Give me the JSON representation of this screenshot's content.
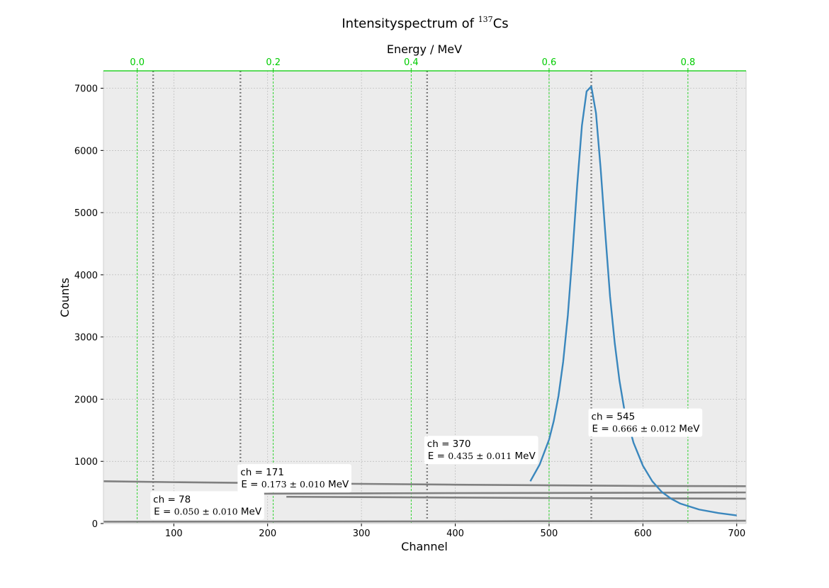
{
  "colors": {
    "plot_background": "#ececec",
    "grid": "#b9b9b9",
    "energy_axis": "#00cc00",
    "fit_curve": "#3a87bd",
    "histogram": "#808080",
    "marker": "#808080",
    "annotation_box": "#ffffff"
  },
  "chart_data": {
    "type": "line",
    "title": {
      "prefix": "Intensityspectrum of ",
      "superscript": "137",
      "suffix": "Cs"
    },
    "xlabel": "Channel",
    "ylabel": "Counts",
    "x2label": "Energy / MeV",
    "xlim": [
      25,
      710
    ],
    "ylim": [
      0,
      7280
    ],
    "xticks": [
      100,
      200,
      300,
      400,
      500,
      600,
      700
    ],
    "yticks": [
      0,
      1000,
      2000,
      3000,
      4000,
      5000,
      6000,
      7000
    ],
    "energy_ticks": [
      {
        "label": "0.0",
        "channel": 61
      },
      {
        "label": "0.2",
        "channel": 206
      },
      {
        "label": "0.4",
        "channel": 353
      },
      {
        "label": "0.6",
        "channel": 500
      },
      {
        "label": "0.8",
        "channel": 648
      }
    ],
    "grid": true,
    "series": [
      {
        "kind": "fit",
        "x": [
          480,
          490,
          500,
          505,
          510,
          515,
          520,
          525,
          530,
          535,
          540,
          545,
          550,
          555,
          560,
          565,
          570,
          575,
          580,
          590,
          600,
          610,
          620,
          630,
          640,
          660,
          680,
          700
        ],
        "y": [
          680,
          950,
          1350,
          1650,
          2050,
          2600,
          3350,
          4350,
          5450,
          6400,
          6950,
          7030,
          6600,
          5700,
          4650,
          3650,
          2900,
          2300,
          1850,
          1300,
          930,
          680,
          510,
          400,
          320,
          225,
          170,
          130
        ]
      },
      {
        "kind": "hist",
        "x": [
          25,
          100,
          200,
          300,
          400,
          500,
          600,
          710
        ],
        "y": [
          680,
          665,
          650,
          638,
          625,
          615,
          605,
          600
        ]
      },
      {
        "kind": "hist",
        "x": [
          160,
          200,
          300,
          400,
          500,
          600,
          710
        ],
        "y": [
          475,
          480,
          485,
          490,
          492,
          495,
          500
        ]
      },
      {
        "kind": "hist",
        "x": [
          220,
          300,
          400,
          500,
          600,
          710
        ],
        "y": [
          430,
          425,
          418,
          410,
          405,
          400
        ]
      },
      {
        "kind": "hist",
        "x": [
          25,
          200,
          400,
          600,
          710
        ],
        "y": [
          30,
          32,
          35,
          40,
          45
        ]
      }
    ],
    "markers": [
      {
        "channel": 78,
        "ch_label": "ch = 78",
        "energy_prefix": "E  = ",
        "energy_value": "0.050 ± 0.010",
        "energy_unit": " MeV",
        "label_y": 110
      },
      {
        "channel": 171,
        "ch_label": "ch = 171",
        "energy_prefix": "E  = ",
        "energy_value": "0.173 ± 0.010",
        "energy_unit": " MeV",
        "label_y": 545
      },
      {
        "channel": 370,
        "ch_label": "ch = 370",
        "energy_prefix": "E  = ",
        "energy_value": "0.435 ± 0.011",
        "energy_unit": " MeV",
        "label_y": 1000
      },
      {
        "channel": 545,
        "ch_label": "ch = 545",
        "energy_prefix": "E  = ",
        "energy_value": "0.666 ± 0.012",
        "energy_unit": " MeV",
        "label_y": 1440
      }
    ]
  }
}
